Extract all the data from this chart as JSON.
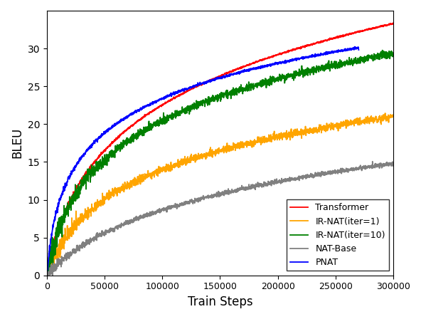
{
  "title": "",
  "xlabel": "Train Steps",
  "ylabel": "BLEU",
  "xlim": [
    0,
    300000
  ],
  "ylim": [
    0,
    35
  ],
  "yticks": [
    0,
    5,
    10,
    15,
    20,
    25,
    30
  ],
  "xticks": [
    0,
    50000,
    100000,
    150000,
    200000,
    250000,
    300000
  ],
  "xtick_labels": [
    "0",
    "50000",
    "100000",
    "150000",
    "200000",
    "250000",
    "300000"
  ],
  "legend_entries": [
    "Transformer",
    "IR-NAT(iter=1)",
    "IR-NAT(iter=10)",
    "NAT-Base",
    "PNAT"
  ],
  "line_colors": [
    "#ff0000",
    "#ffa500",
    "#008000",
    "#808080",
    "#0000ff"
  ],
  "curves": {
    "transformer": {
      "x_knee": 12000,
      "y_plateau": 32.5,
      "noise_early": 0.25,
      "noise_late": 0.05,
      "final_rise": 0.8
    },
    "ir_nat1": {
      "x_knee": 15000,
      "y_plateau": 20.8,
      "noise_early": 0.5,
      "noise_late": 0.25,
      "final_rise": 0.2
    },
    "ir_nat10": {
      "x_knee": 10000,
      "y_plateau": 29.2,
      "noise_early": 0.8,
      "noise_late": 0.25,
      "final_rise": 0.15
    },
    "nat_base": {
      "x_knee": 40000,
      "y_plateau": 14.7,
      "noise_early": 0.25,
      "noise_late": 0.15,
      "final_rise": 0.1
    },
    "pnat": {
      "x_knee": 3500,
      "y_plateau": 30.1,
      "noise_early": 0.2,
      "noise_late": 0.08,
      "final_rise": 0.0,
      "x_end": 270000
    }
  }
}
